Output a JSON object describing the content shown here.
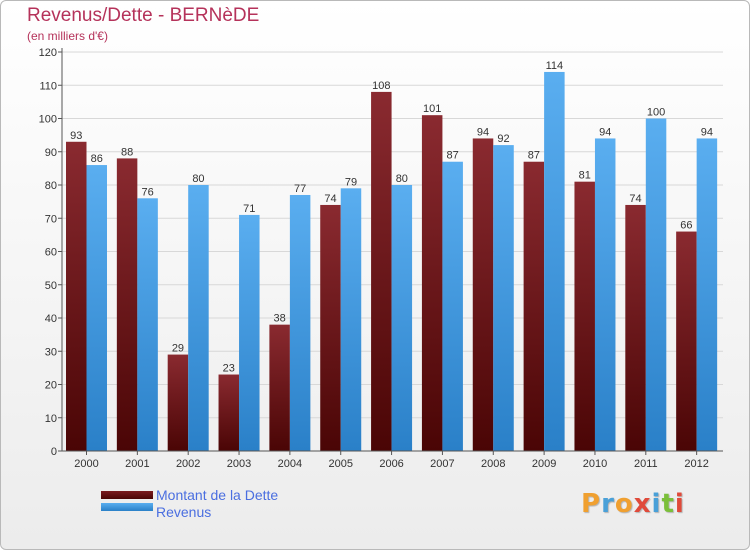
{
  "chart_data": {
    "type": "bar",
    "title": "Revenus/Dette - BERNèDE",
    "subtitle": "(en milliers d'€)",
    "categories": [
      "2000",
      "2001",
      "2002",
      "2003",
      "2004",
      "2005",
      "2006",
      "2007",
      "2008",
      "2009",
      "2010",
      "2011",
      "2012"
    ],
    "series": [
      {
        "name": "Montant de la Dette",
        "values": [
          93,
          88,
          29,
          23,
          38,
          74,
          108,
          101,
          94,
          87,
          81,
          74,
          66
        ],
        "color": "#7a1a1f"
      },
      {
        "name": "Revenus",
        "values": [
          86,
          76,
          80,
          71,
          77,
          79,
          80,
          87,
          92,
          114,
          94,
          100,
          94
        ],
        "color": "#4fa3e6"
      }
    ],
    "ylim": [
      0,
      120
    ],
    "yticks": [
      0,
      10,
      20,
      30,
      40,
      50,
      60,
      70,
      80,
      90,
      100,
      110,
      120
    ],
    "grid": true,
    "legend_position": "bottom-left"
  },
  "logo": {
    "text": "Proxiti",
    "letters": [
      "P",
      "r",
      "o",
      "x",
      "i",
      "t",
      "i"
    ],
    "colors": [
      "#f0a030",
      "#49a0d8",
      "#f0a030",
      "#e04a3a",
      "#49a0d8",
      "#7bbf3a",
      "#e04a3a"
    ]
  }
}
